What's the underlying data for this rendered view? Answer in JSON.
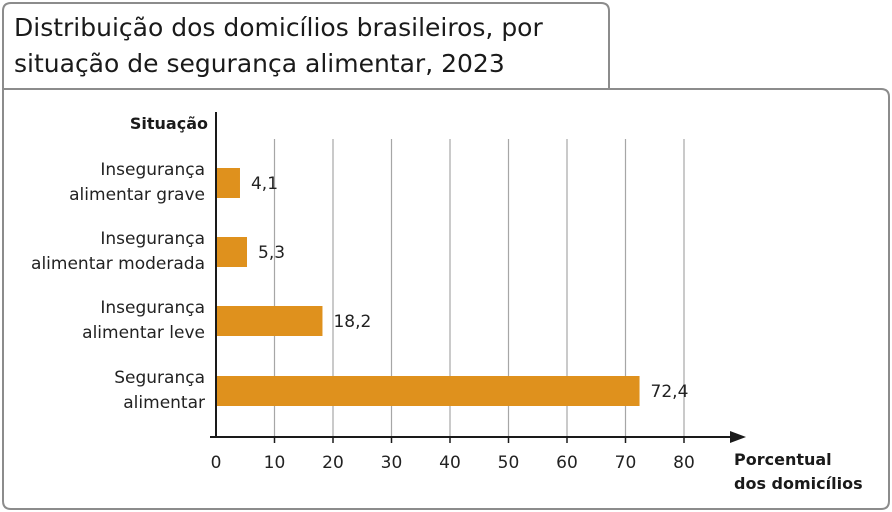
{
  "title_line1": "Distribuição dos domicílios brasileiros, por",
  "title_line2": "situação de segurança alimentar, 2023",
  "chart_data": {
    "type": "bar",
    "orientation": "horizontal",
    "title": "Distribuição dos domicílios brasileiros, por situação de segurança alimentar, 2023",
    "ylabel": "Situação",
    "xlabel_line1": "Porcentual",
    "xlabel_line2": "dos domicílios",
    "categories": [
      [
        "Insegurança",
        "alimentar grave"
      ],
      [
        "Insegurança",
        "alimentar moderada"
      ],
      [
        "Insegurança",
        "alimentar leve"
      ],
      [
        "Segurança",
        "alimentar"
      ]
    ],
    "values": [
      4.1,
      5.3,
      18.2,
      72.4
    ],
    "value_labels": [
      "4,1",
      "5,3",
      "18,2",
      "72,4"
    ],
    "xticks": [
      0,
      10,
      20,
      30,
      40,
      50,
      60,
      70,
      80
    ],
    "xlim": [
      0,
      90
    ],
    "grid": "vertical",
    "colors": {
      "bar": "#df911d",
      "grid": "#a6a6a6",
      "frame": "#8c8c8c",
      "axis": "#1a1a1a"
    }
  }
}
